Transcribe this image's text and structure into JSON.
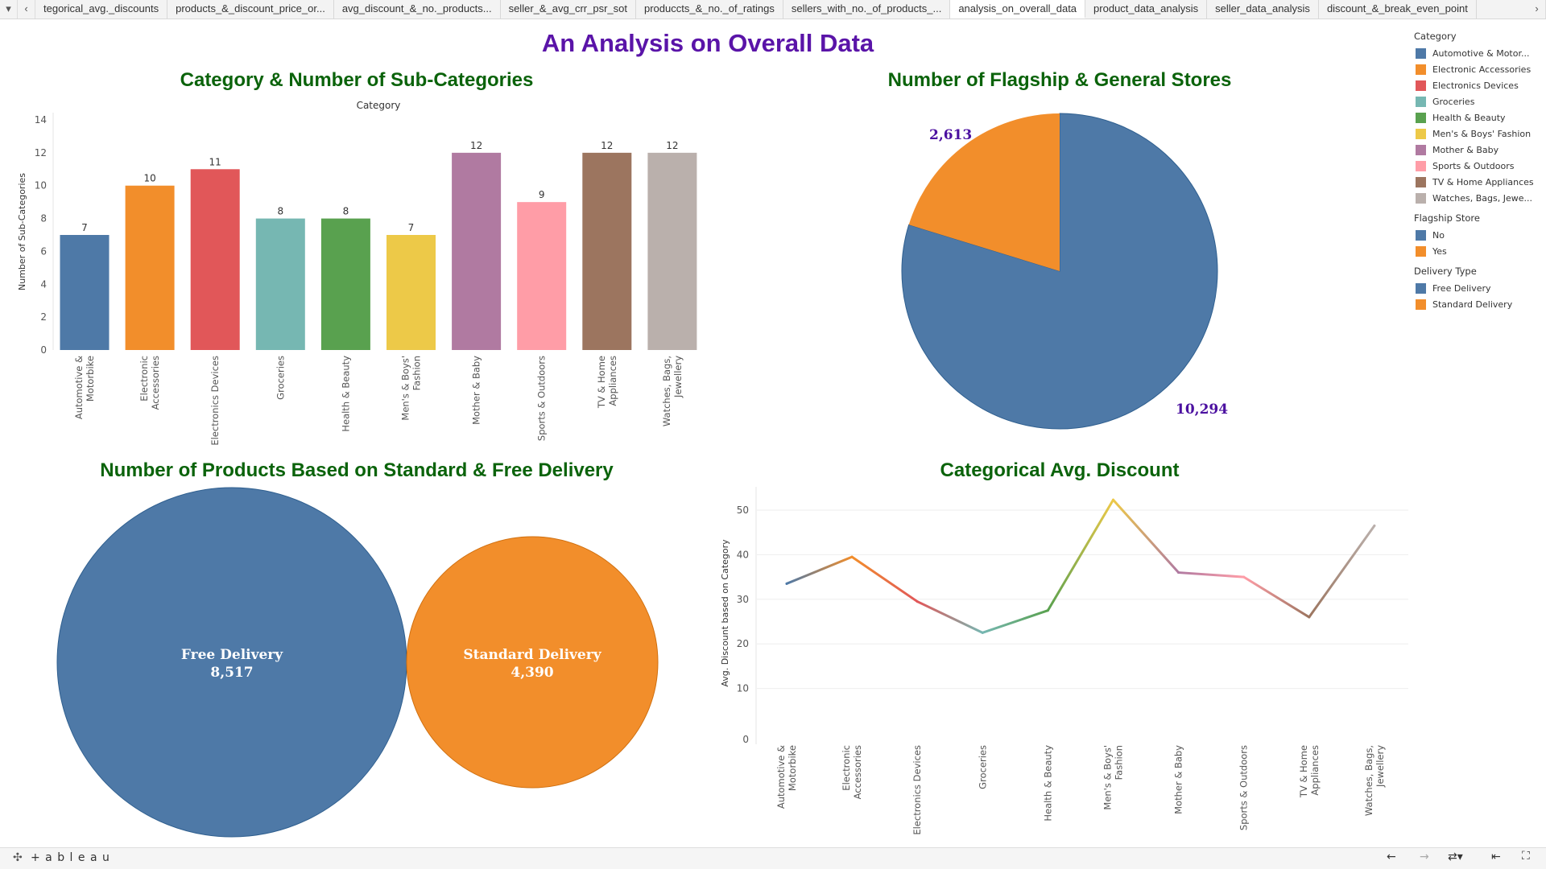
{
  "tabs": [
    "tegorical_avg._discounts",
    "products_&_discount_price_or...",
    "avg_discount_&_no._products...",
    "seller_&_avg_crr_psr_sot",
    "producсts_&_no._of_ratings",
    "sellers_with_no._of_products_...",
    "analysis_on_overall_data",
    "product_data_analysis",
    "seller_data_analysis",
    "discount_&_break_even_point"
  ],
  "active_tab": "analysis_on_overall_data",
  "title": "An Analysis on Overall Data",
  "categories": [
    "Automotive & Motorbike",
    "Electronic Accessories",
    "Electronics Devices",
    "Groceries",
    "Health & Beauty",
    "Men's & Boys' Fashion",
    "Mother & Baby",
    "Sports & Outdoors",
    "TV & Home Appliances",
    "Watches, Bags, Jewellery"
  ],
  "category_labels": [
    [
      "Automotive &",
      "Motorbike"
    ],
    [
      "Electronic",
      "Accessories"
    ],
    [
      "Electronics Devices"
    ],
    [
      "Groceries"
    ],
    [
      "Health & Beauty"
    ],
    [
      "Men's & Boys'",
      "Fashion"
    ],
    [
      "Mother & Baby"
    ],
    [
      "Sports & Outdoors"
    ],
    [
      "TV & Home",
      "Appliances"
    ],
    [
      "Watches, Bags,",
      "Jewellery"
    ]
  ],
  "category_colors": [
    "#4e79a7",
    "#f28e2b",
    "#e15759",
    "#76b7b2",
    "#59a14f",
    "#edc948",
    "#b07aa1",
    "#ff9da7",
    "#9c755f",
    "#bab0ac"
  ],
  "legend": {
    "category_title": "Category",
    "category_items": [
      "Automotive & Motor...",
      "Electronic Accessories",
      "Electronics Devices",
      "Groceries",
      "Health & Beauty",
      "Men's & Boys' Fashion",
      "Mother & Baby",
      "Sports & Outdoors",
      "TV & Home Appliances",
      "Watches, Bags, Jewe..."
    ],
    "flagship_title": "Flagship Store",
    "flagship_items": [
      "No",
      "Yes"
    ],
    "delivery_title": "Delivery Type",
    "delivery_items": [
      "Free Delivery",
      "Standard Delivery"
    ]
  },
  "chart_data": [
    {
      "type": "bar",
      "title": "Category & Number of Sub-Categories",
      "xlabel": "Category",
      "ylabel": "Number of Sub-Categories",
      "ylim": [
        0,
        14
      ],
      "yticks": [
        0,
        2,
        4,
        6,
        8,
        10,
        12,
        14
      ],
      "categories_ref": "categories",
      "values": [
        7,
        10,
        11,
        8,
        8,
        7,
        12,
        9,
        12,
        12
      ],
      "grid": false
    },
    {
      "type": "pie",
      "title": "Number of Flagship & General Stores",
      "slices": [
        {
          "name": "No",
          "value": 10294,
          "label": "10,294",
          "color": "#4e79a7"
        },
        {
          "name": "Yes",
          "value": 2613,
          "label": "2,613",
          "color": "#f28e2b"
        }
      ]
    },
    {
      "type": "bubble",
      "title": "Number of Products Based on Standard & Free Delivery",
      "bubbles": [
        {
          "name": "Free Delivery",
          "value": 8517,
          "label": "8,517",
          "color": "#4e79a7"
        },
        {
          "name": "Standard Delivery",
          "value": 4390,
          "label": "4,390",
          "color": "#f28e2b"
        }
      ]
    },
    {
      "type": "line",
      "title": "Categorical Avg. Discount",
      "ylabel": "Avg. Discount based on Category",
      "ylim": [
        0,
        55
      ],
      "yticks": [
        0,
        10,
        20,
        30,
        40,
        50
      ],
      "values": [
        33.5,
        39.5,
        29.5,
        22.5,
        27.5,
        52.3,
        36,
        35,
        26,
        46.5
      ],
      "grid": true
    }
  ],
  "footer": {
    "logo": "+ a b l e a u"
  }
}
